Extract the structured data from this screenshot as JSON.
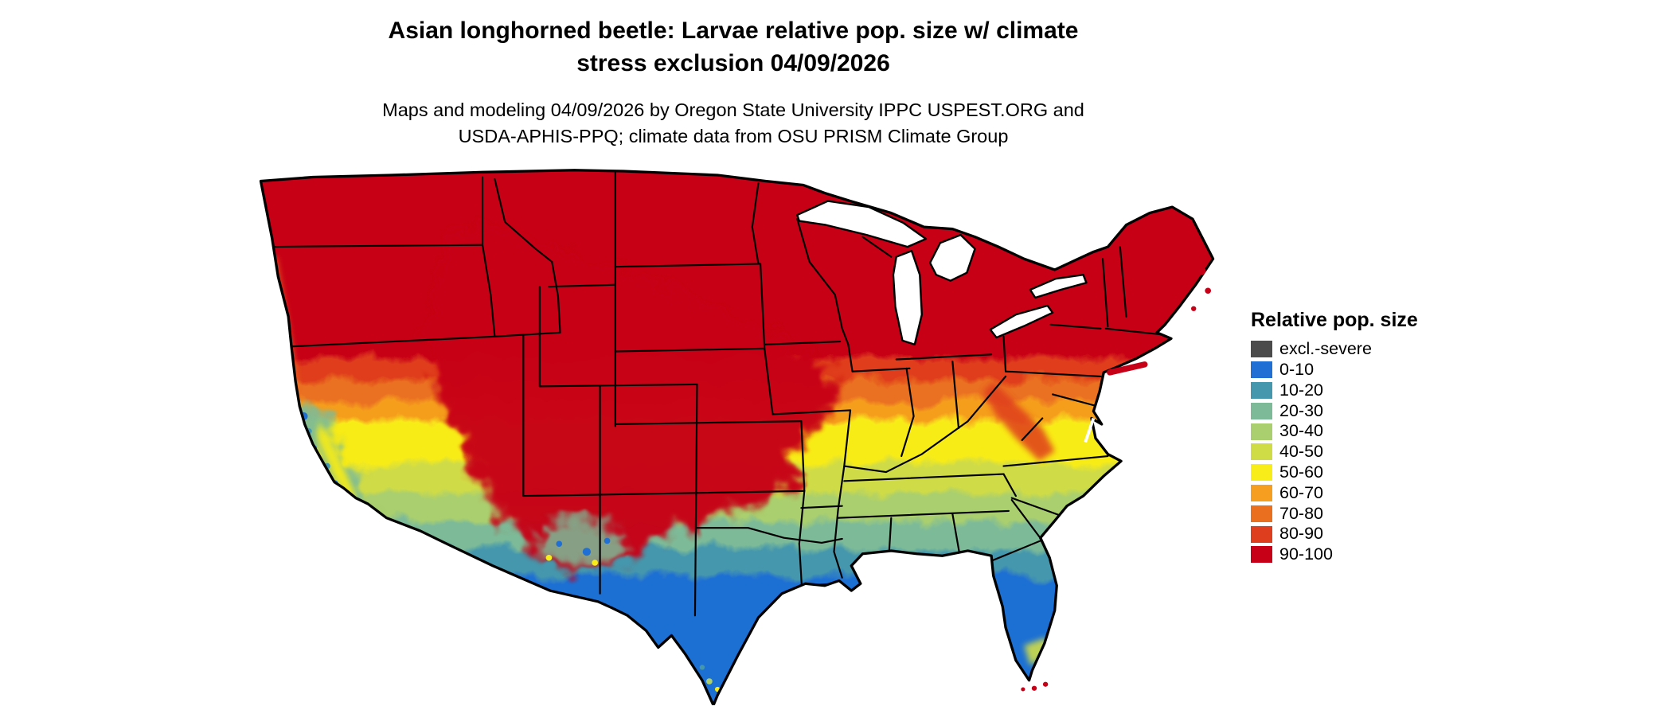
{
  "title": {
    "line1": "Asian longhorned beetle: Larvae relative pop. size w/ climate",
    "line2": "stress exclusion 04/09/2026"
  },
  "subtitle": {
    "line1": "Maps and modeling 04/09/2026 by Oregon State University IPPC USPEST.ORG and",
    "line2": "USDA-APHIS-PPQ; climate data from OSU PRISM Climate Group"
  },
  "legend": {
    "title": "Relative pop. size",
    "items": [
      {
        "label": "excl.-severe",
        "color": "#4b4b4b"
      },
      {
        "label": "0-10",
        "color": "#1f6fd4"
      },
      {
        "label": "10-20",
        "color": "#4597ad"
      },
      {
        "label": "20-30",
        "color": "#7dbb98"
      },
      {
        "label": "30-40",
        "color": "#aacf6e"
      },
      {
        "label": "40-50",
        "color": "#d0dc46"
      },
      {
        "label": "50-60",
        "color": "#f8ec19"
      },
      {
        "label": "60-70",
        "color": "#f59e1f"
      },
      {
        "label": "70-80",
        "color": "#ea7020"
      },
      {
        "label": "80-90",
        "color": "#df3e1e"
      },
      {
        "label": "90-100",
        "color": "#c70017"
      }
    ]
  }
}
